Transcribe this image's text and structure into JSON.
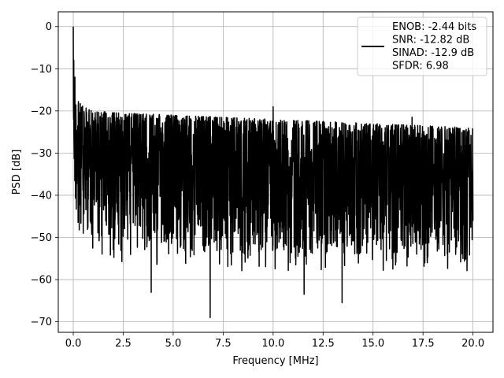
{
  "chart_data": {
    "type": "line",
    "title": "",
    "xlabel": "Frequency [MHz]",
    "ylabel": "PSD [dB]",
    "xlim": [
      -0.75,
      21.0
    ],
    "ylim": [
      -72.5,
      3.5
    ],
    "xticks": [
      0.0,
      2.5,
      5.0,
      7.5,
      10.0,
      12.5,
      15.0,
      17.5,
      20.0
    ],
    "xtick_labels": [
      "0.0",
      "2.5",
      "5.0",
      "7.5",
      "10.0",
      "12.5",
      "15.0",
      "17.5",
      "20.0"
    ],
    "yticks": [
      0,
      -10,
      -20,
      -30,
      -40,
      -50,
      -60,
      -70
    ],
    "ytick_labels": [
      "0",
      "−10",
      "−20",
      "−30",
      "−40",
      "−50",
      "−60",
      "−70"
    ],
    "grid": true,
    "legend_position": "top-right",
    "series": [
      {
        "color": "#000000",
        "envelope_x": [
          0.0,
          0.05,
          0.1,
          0.5,
          1.0,
          2.5,
          5.0,
          7.5,
          10.0,
          12.5,
          15.0,
          17.5,
          20.0
        ],
        "envelope_top": [
          0,
          -12,
          -17,
          -19,
          -20,
          -20.5,
          -21,
          -21.5,
          -22,
          -22.5,
          -23,
          -23.5,
          -24
        ],
        "envelope_floor": [
          -36,
          -40,
          -44,
          -48,
          -50,
          -52,
          -53,
          -54,
          -54,
          -54,
          -54,
          -54,
          -54
        ],
        "peaks": [
          {
            "x": 0.0,
            "y": 0
          },
          {
            "x": 0.08,
            "y": -12
          },
          {
            "x": 10.0,
            "y": -19
          },
          {
            "x": 16.95,
            "y": -21.5
          }
        ],
        "dips": [
          {
            "x": 3.9,
            "y": -63
          },
          {
            "x": 6.85,
            "y": -69
          },
          {
            "x": 11.55,
            "y": -63.5
          },
          {
            "x": 13.45,
            "y": -65.5
          }
        ]
      }
    ],
    "legend_lines": [
      "ENOB: -2.44 bits",
      "SNR: -12.82 dB",
      "SINAD: -12.9 dB",
      "SFDR: 6.98"
    ]
  }
}
